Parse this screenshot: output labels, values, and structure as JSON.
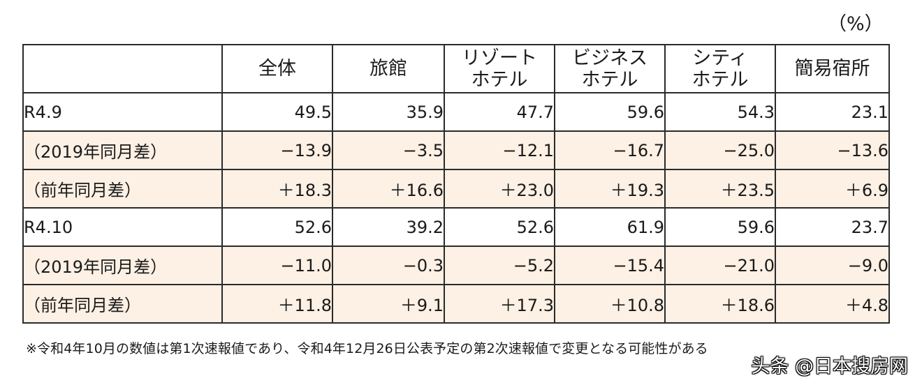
{
  "unit_label": "（%）",
  "chart_data": {
    "type": "table",
    "columns": [
      "",
      "全体",
      "旅館",
      "リゾート\nホテル",
      "ビジネス\nホテル",
      "シティ\nホテル",
      "簡易宿所"
    ],
    "header": [
      {
        "lines": [
          ""
        ]
      },
      {
        "lines": [
          "全体"
        ]
      },
      {
        "lines": [
          "旅館"
        ]
      },
      {
        "lines": [
          "リゾート",
          "ホテル"
        ]
      },
      {
        "lines": [
          "ビジネス",
          "ホテル"
        ]
      },
      {
        "lines": [
          "シティ",
          "ホテル"
        ]
      },
      {
        "lines": [
          "簡易宿所"
        ]
      }
    ],
    "rows": [
      {
        "label": "R4.9",
        "shaded": false,
        "values": [
          "49.5",
          "35.9",
          "47.7",
          "59.6",
          "54.3",
          "23.1"
        ]
      },
      {
        "label": "（2019年同月差）",
        "shaded": true,
        "values": [
          "−13.9",
          "−3.5",
          "−12.1",
          "−16.7",
          "−25.0",
          "−13.6"
        ]
      },
      {
        "label": "（前年同月差）",
        "shaded": true,
        "values": [
          "＋18.3",
          "＋16.6",
          "＋23.0",
          "＋19.3",
          "＋23.5",
          "＋6.9"
        ]
      },
      {
        "label": "R4.10",
        "shaded": false,
        "values": [
          "52.6",
          "39.2",
          "52.6",
          "61.9",
          "59.6",
          "23.7"
        ]
      },
      {
        "label": "（2019年同月差）",
        "shaded": true,
        "values": [
          "−11.0",
          "−0.3",
          "−5.2",
          "−15.4",
          "−21.0",
          "−9.0"
        ]
      },
      {
        "label": "（前年同月差）",
        "shaded": true,
        "values": [
          "＋11.8",
          "＋9.1",
          "＋17.3",
          "＋10.8",
          "＋18.6",
          "＋4.8"
        ]
      }
    ]
  },
  "footnote": "※令和4年10月の数値は第1次速報値であり、令和4年12月26日公表予定の第2次速報値で変更となる可能性がある",
  "watermark": "头条 @日本搜房网"
}
